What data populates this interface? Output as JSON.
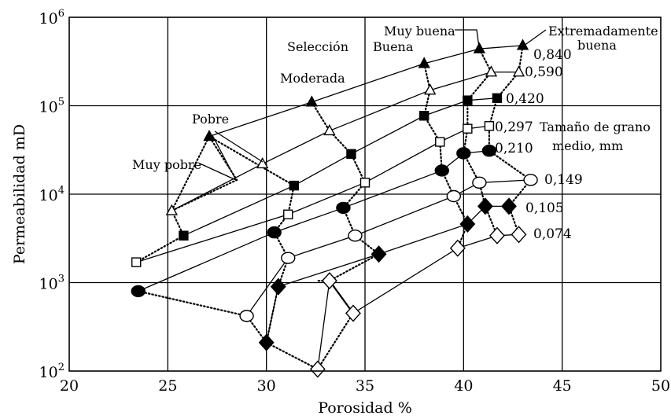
{
  "chart_data": {
    "type": "line",
    "xlabel": "Porosidad %",
    "ylabel": "Permeabilidad  mD",
    "xlim": [
      20,
      50
    ],
    "ylim": [
      100,
      1000000
    ],
    "y_scale": "log",
    "grid": true,
    "x_ticks": [
      "20",
      "25",
      "30",
      "35",
      "40",
      "45",
      "50"
    ],
    "y_ticks": [
      {
        "base": "10",
        "exp": "2"
      },
      {
        "base": "10",
        "exp": "3"
      },
      {
        "base": "10",
        "exp": "4"
      },
      {
        "base": "10",
        "exp": "5"
      },
      {
        "base": "10",
        "exp": "6"
      }
    ],
    "series": [
      {
        "name": "0,840",
        "marker": "triangle-filled",
        "x": [
          27.1,
          32.3,
          38.0,
          40.8,
          43.0
        ],
        "y": [
          45000,
          110000,
          300000,
          440000,
          480000
        ]
      },
      {
        "name": "0,590",
        "marker": "triangle-open",
        "x": [
          25.2,
          29.8,
          33.2,
          38.3,
          41.4,
          42.8
        ],
        "y": [
          6500,
          22000,
          52000,
          150000,
          240000,
          240000
        ]
      },
      {
        "name": "0,420",
        "marker": "square-filled",
        "x": [
          25.8,
          31.4,
          34.3,
          38.0,
          40.2,
          41.7
        ],
        "y": [
          3400,
          12500,
          28500,
          77000,
          115000,
          122000
        ]
      },
      {
        "name": "0,297",
        "marker": "square-open",
        "x": [
          23.4,
          31.1,
          35.0,
          38.8,
          40.2,
          41.3
        ],
        "y": [
          1700,
          5900,
          13500,
          39000,
          55000,
          59000
        ]
      },
      {
        "name": "0,210",
        "marker": "circle-filled",
        "x": [
          23.5,
          30.4,
          33.9,
          38.9,
          40.0,
          41.3
        ],
        "y": [
          800,
          3700,
          7000,
          18500,
          29000,
          31000
        ]
      },
      {
        "name": "0,149",
        "marker": "circle-open",
        "x": [
          29.0,
          31.1,
          34.5,
          39.5,
          40.8,
          43.4
        ],
        "y": [
          420,
          1900,
          3400,
          9500,
          13500,
          14500
        ]
      },
      {
        "name": "0,105",
        "marker": "diamond-filled",
        "x": [
          30.0,
          30.6,
          35.7,
          40.2,
          41.1,
          42.3
        ],
        "y": [
          210,
          900,
          2100,
          4600,
          7300,
          7300
        ]
      },
      {
        "name": "0,074",
        "marker": "diamond-open",
        "x": [
          32.6,
          33.2,
          34.4,
          39.7,
          41.7,
          42.8
        ],
        "y": [
          105,
          1050,
          450,
          2450,
          3400,
          3500
        ]
      }
    ],
    "sorting_links": [
      {
        "label": "Muy pobre",
        "members": [
          [
            25.2,
            6500
          ],
          [
            27.1,
            45000
          ],
          [
            28.5,
            14500
          ],
          [
            25.2,
            6500
          ]
        ]
      },
      {
        "label": "Pobre",
        "members": [
          [
            27.1,
            45000
          ],
          [
            31.4,
            12500
          ],
          [
            31.1,
            5900
          ],
          [
            30.4,
            3700
          ],
          [
            31.1,
            1900
          ],
          [
            30.6,
            900
          ],
          [
            30.0,
            210
          ]
        ]
      },
      {
        "label": "Moderada",
        "members": [
          [
            32.3,
            110000
          ],
          [
            33.2,
            52000
          ],
          [
            34.3,
            28500
          ],
          [
            35.0,
            13500
          ],
          [
            33.9,
            7000
          ],
          [
            34.5,
            3400
          ],
          [
            35.7,
            2100
          ],
          [
            33.2,
            1050
          ],
          [
            34.4,
            450
          ]
        ]
      },
      {
        "label": "Buena",
        "members": [
          [
            38.0,
            300000
          ],
          [
            38.3,
            150000
          ],
          [
            38.0,
            77000
          ],
          [
            38.8,
            39000
          ],
          [
            38.9,
            18500
          ],
          [
            39.5,
            9500
          ],
          [
            40.2,
            4600
          ],
          [
            39.7,
            2450
          ]
        ]
      },
      {
        "label": "Muy buena",
        "members": [
          [
            40.8,
            440000
          ],
          [
            41.4,
            240000
          ],
          [
            40.2,
            115000
          ],
          [
            40.2,
            55000
          ],
          [
            40.0,
            29000
          ],
          [
            40.8,
            13500
          ],
          [
            41.1,
            7300
          ],
          [
            41.7,
            3400
          ]
        ]
      },
      {
        "label": "Extremadamente buena",
        "members": [
          [
            43.0,
            480000
          ],
          [
            42.8,
            240000
          ],
          [
            41.7,
            122000
          ],
          [
            41.3,
            59000
          ],
          [
            41.3,
            31000
          ],
          [
            43.4,
            14500
          ],
          [
            42.3,
            7300
          ],
          [
            42.8,
            3500
          ]
        ]
      }
    ],
    "extra_dotted": [
      {
        "members": [
          [
            23.4,
            1700
          ],
          [
            25.8,
            3400
          ],
          [
            25.2,
            6500
          ]
        ]
      },
      {
        "members": [
          [
            23.5,
            800
          ],
          [
            29.0,
            420
          ],
          [
            30.0,
            210
          ],
          [
            32.6,
            105
          ],
          [
            34.4,
            450
          ],
          [
            33.2,
            1050
          ],
          [
            32.6,
            1050
          ]
        ]
      }
    ],
    "annotations": {
      "seleccion": "Selección",
      "muy_pobre": "Muy pobre",
      "pobre": "Pobre",
      "moderada": "Moderada",
      "buena": "Buena",
      "muy_buena": "Muy buena",
      "extremadamente_line1": "Extremadamente",
      "extremadamente_line2": "buena",
      "grain_size_line1": "Tamaño de grano",
      "grain_size_line2": "medio, mm"
    }
  }
}
